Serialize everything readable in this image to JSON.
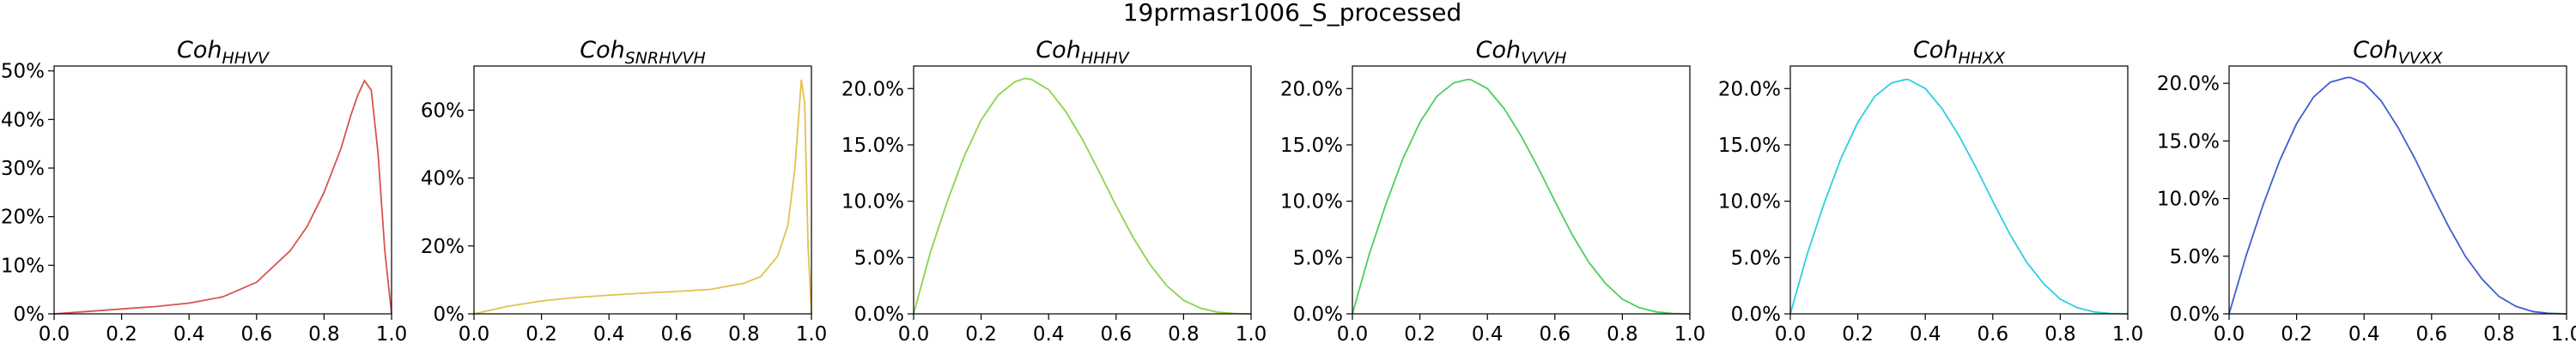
{
  "figure_title": "19prmasr1006_S_processed",
  "chart_data": [
    {
      "type": "line",
      "title_main": "Coh",
      "title_sub": "HHVV",
      "color": "#d9534f",
      "xlim": [
        0,
        1
      ],
      "ylim": [
        0,
        0.51
      ],
      "xticks": [
        0.0,
        0.2,
        0.4,
        0.6,
        0.8,
        1.0
      ],
      "xtick_labels": [
        "0.0",
        "0.2",
        "0.4",
        "0.6",
        "0.8",
        "1.0"
      ],
      "yticks": [
        0,
        0.1,
        0.2,
        0.3,
        0.4,
        0.5
      ],
      "ytick_labels": [
        "0%",
        "10%",
        "20%",
        "30%",
        "40%",
        "50%"
      ],
      "x": [
        0,
        0.1,
        0.2,
        0.3,
        0.4,
        0.5,
        0.6,
        0.7,
        0.75,
        0.8,
        0.85,
        0.88,
        0.9,
        0.92,
        0.94,
        0.96,
        0.98,
        1.0
      ],
      "y": [
        0.0,
        0.005,
        0.01,
        0.015,
        0.022,
        0.035,
        0.065,
        0.13,
        0.18,
        0.25,
        0.34,
        0.41,
        0.45,
        0.48,
        0.46,
        0.33,
        0.13,
        0.0
      ]
    },
    {
      "type": "line",
      "title_main": "Coh",
      "title_sub": "SNRHVVH",
      "color": "#e6c04f",
      "xlim": [
        0,
        1
      ],
      "ylim": [
        0,
        0.73
      ],
      "xticks": [
        0.0,
        0.2,
        0.4,
        0.6,
        0.8,
        1.0
      ],
      "xtick_labels": [
        "0.0",
        "0.2",
        "0.4",
        "0.6",
        "0.8",
        "1.0"
      ],
      "yticks": [
        0,
        0.2,
        0.4,
        0.6
      ],
      "ytick_labels": [
        "0%",
        "20%",
        "40%",
        "60%"
      ],
      "x": [
        0,
        0.1,
        0.2,
        0.3,
        0.4,
        0.5,
        0.6,
        0.7,
        0.8,
        0.85,
        0.9,
        0.93,
        0.95,
        0.96,
        0.97,
        0.98,
        0.99,
        1.0
      ],
      "y": [
        0.0,
        0.022,
        0.038,
        0.048,
        0.055,
        0.061,
        0.066,
        0.072,
        0.09,
        0.11,
        0.17,
        0.26,
        0.42,
        0.55,
        0.69,
        0.62,
        0.2,
        0.0
      ]
    },
    {
      "type": "line",
      "title_main": "Coh",
      "title_sub": "HHHV",
      "color": "#8cd448",
      "xlim": [
        0,
        1
      ],
      "ylim": [
        0,
        0.22
      ],
      "xticks": [
        0.0,
        0.2,
        0.4,
        0.6,
        0.8,
        1.0
      ],
      "xtick_labels": [
        "0.0",
        "0.2",
        "0.4",
        "0.6",
        "0.8",
        "1.0"
      ],
      "yticks": [
        0,
        0.05,
        0.1,
        0.15,
        0.2
      ],
      "ytick_labels": [
        "0.0%",
        "5.0%",
        "10.0%",
        "15.0%",
        "20.0%"
      ],
      "x": [
        0,
        0.05,
        0.1,
        0.15,
        0.2,
        0.25,
        0.3,
        0.33,
        0.35,
        0.4,
        0.45,
        0.5,
        0.55,
        0.6,
        0.65,
        0.7,
        0.75,
        0.8,
        0.85,
        0.9,
        0.95,
        1.0
      ],
      "y": [
        0.0,
        0.055,
        0.1,
        0.14,
        0.172,
        0.194,
        0.206,
        0.209,
        0.208,
        0.199,
        0.18,
        0.155,
        0.126,
        0.096,
        0.068,
        0.044,
        0.025,
        0.012,
        0.005,
        0.0015,
        0.0003,
        0.0
      ]
    },
    {
      "type": "line",
      "title_main": "Coh",
      "title_sub": "VVVH",
      "color": "#4ccf5c",
      "xlim": [
        0,
        1
      ],
      "ylim": [
        0,
        0.22
      ],
      "xticks": [
        0.0,
        0.2,
        0.4,
        0.6,
        0.8,
        1.0
      ],
      "xtick_labels": [
        "0.0",
        "0.2",
        "0.4",
        "0.6",
        "0.8",
        "1.0"
      ],
      "yticks": [
        0,
        0.05,
        0.1,
        0.15,
        0.2
      ],
      "ytick_labels": [
        "0.0%",
        "5.0%",
        "10.0%",
        "15.0%",
        "20.0%"
      ],
      "x": [
        0,
        0.05,
        0.1,
        0.15,
        0.2,
        0.25,
        0.3,
        0.34,
        0.35,
        0.4,
        0.45,
        0.5,
        0.55,
        0.6,
        0.65,
        0.7,
        0.75,
        0.8,
        0.85,
        0.9,
        0.95,
        1.0
      ],
      "y": [
        0.0,
        0.053,
        0.098,
        0.138,
        0.17,
        0.193,
        0.205,
        0.208,
        0.208,
        0.2,
        0.182,
        0.158,
        0.13,
        0.1,
        0.071,
        0.046,
        0.027,
        0.013,
        0.0055,
        0.0017,
        0.0003,
        0.0
      ]
    },
    {
      "type": "line",
      "title_main": "Coh",
      "title_sub": "HHXX",
      "color": "#2ccfe0",
      "xlim": [
        0,
        1
      ],
      "ylim": [
        0,
        0.22
      ],
      "xticks": [
        0.0,
        0.2,
        0.4,
        0.6,
        0.8,
        1.0
      ],
      "xtick_labels": [
        "0.0",
        "0.2",
        "0.4",
        "0.6",
        "0.8",
        "1.0"
      ],
      "yticks": [
        0,
        0.05,
        0.1,
        0.15,
        0.2
      ],
      "ytick_labels": [
        "0.0%",
        "5.0%",
        "10.0%",
        "15.0%",
        "20.0%"
      ],
      "x": [
        0,
        0.05,
        0.1,
        0.15,
        0.2,
        0.25,
        0.3,
        0.34,
        0.35,
        0.4,
        0.45,
        0.5,
        0.55,
        0.6,
        0.65,
        0.7,
        0.75,
        0.8,
        0.85,
        0.9,
        0.95,
        1.0
      ],
      "y": [
        0.0,
        0.053,
        0.098,
        0.138,
        0.17,
        0.193,
        0.205,
        0.208,
        0.208,
        0.2,
        0.182,
        0.158,
        0.13,
        0.1,
        0.071,
        0.046,
        0.027,
        0.013,
        0.0055,
        0.0017,
        0.0003,
        0.0
      ]
    },
    {
      "type": "line",
      "title_main": "Coh",
      "title_sub": "VVXX",
      "color": "#3f5fcf",
      "xlim": [
        0,
        1
      ],
      "ylim": [
        0,
        0.215
      ],
      "xticks": [
        0.0,
        0.2,
        0.4,
        0.6,
        0.8,
        1.0
      ],
      "xtick_labels": [
        "0.0",
        "0.2",
        "0.4",
        "0.6",
        "0.8",
        "1.0"
      ],
      "yticks": [
        0,
        0.05,
        0.1,
        0.15,
        0.2
      ],
      "ytick_labels": [
        "0.0%",
        "5.0%",
        "10.0%",
        "15.0%",
        "20.0%"
      ],
      "x": [
        0,
        0.05,
        0.1,
        0.15,
        0.2,
        0.25,
        0.3,
        0.35,
        0.36,
        0.4,
        0.45,
        0.5,
        0.55,
        0.6,
        0.65,
        0.7,
        0.75,
        0.8,
        0.85,
        0.9,
        0.95,
        1.0
      ],
      "y": [
        0.0,
        0.05,
        0.094,
        0.133,
        0.165,
        0.188,
        0.201,
        0.205,
        0.205,
        0.2,
        0.185,
        0.162,
        0.135,
        0.105,
        0.076,
        0.05,
        0.03,
        0.015,
        0.0065,
        0.002,
        0.0004,
        0.0
      ]
    }
  ]
}
